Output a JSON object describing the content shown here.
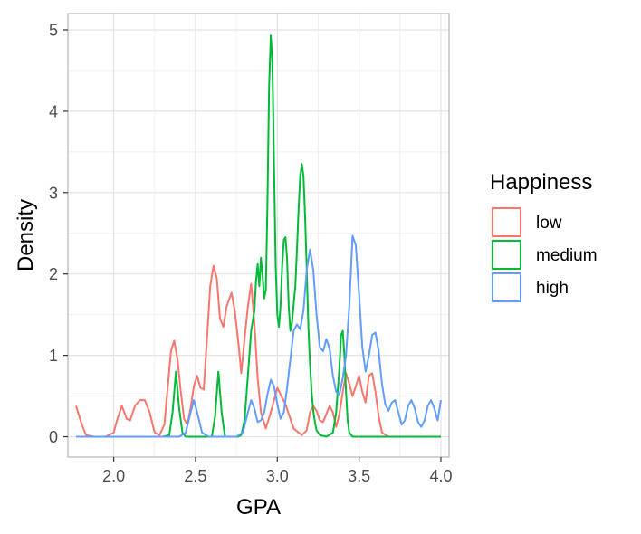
{
  "chart_data": {
    "type": "line",
    "subtype": "density",
    "title": "",
    "xlabel": "GPA",
    "ylabel": "Density",
    "xlim": [
      1.72,
      4.05
    ],
    "ylim": [
      -0.25,
      5.2
    ],
    "xticks": [
      2.0,
      2.5,
      3.0,
      3.5,
      4.0
    ],
    "xtick_labels": [
      "2.0",
      "2.5",
      "3.0",
      "3.5",
      "4.0"
    ],
    "yticks": [
      0,
      1,
      2,
      3,
      4,
      5
    ],
    "ytick_labels": [
      "0",
      "1",
      "2",
      "3",
      "4",
      "5"
    ],
    "grid": true,
    "legend": {
      "title": "Happiness",
      "position": "right"
    },
    "series": [
      {
        "name": "low",
        "color": "#F8766D",
        "x": [
          1.77,
          1.8,
          1.83,
          1.88,
          1.95,
          2.0,
          2.02,
          2.05,
          2.08,
          2.1,
          2.13,
          2.16,
          2.19,
          2.22,
          2.25,
          2.28,
          2.31,
          2.33,
          2.35,
          2.37,
          2.39,
          2.41,
          2.43,
          2.45,
          2.47,
          2.49,
          2.51,
          2.53,
          2.55,
          2.57,
          2.59,
          2.61,
          2.63,
          2.65,
          2.67,
          2.69,
          2.72,
          2.74,
          2.76,
          2.78,
          2.8,
          2.82,
          2.84,
          2.86,
          2.88,
          2.9,
          2.93,
          2.96,
          3.0,
          3.05,
          3.1,
          3.15,
          3.18,
          3.2,
          3.22,
          3.24,
          3.26,
          3.28,
          3.3,
          3.32,
          3.34,
          3.36,
          3.38,
          3.4,
          3.42,
          3.44,
          3.46,
          3.48,
          3.5,
          3.52,
          3.54,
          3.56,
          3.58,
          3.6,
          3.62,
          3.64,
          3.68,
          3.75,
          3.85,
          3.95,
          4.0
        ],
        "y": [
          0.38,
          0.18,
          0.02,
          0,
          0,
          0.05,
          0.2,
          0.38,
          0.22,
          0.2,
          0.38,
          0.45,
          0.45,
          0.3,
          0.05,
          0.02,
          0.15,
          0.6,
          1.05,
          1.18,
          0.95,
          0.55,
          0.22,
          0.15,
          0.35,
          0.62,
          0.75,
          0.6,
          0.58,
          1.2,
          1.85,
          2.1,
          1.95,
          1.45,
          1.35,
          1.6,
          1.77,
          1.55,
          1.2,
          0.78,
          1.2,
          1.6,
          1.88,
          1.4,
          0.72,
          0.3,
          0.1,
          0.3,
          0.6,
          0.4,
          0.1,
          0.02,
          0.08,
          0.3,
          0.38,
          0.32,
          0.2,
          0.18,
          0.28,
          0.38,
          0.3,
          0.12,
          0.28,
          0.55,
          0.78,
          0.65,
          0.5,
          0.62,
          0.75,
          0.55,
          0.42,
          0.75,
          0.78,
          0.55,
          0.25,
          0.05,
          0,
          0,
          0,
          0,
          0
        ]
      },
      {
        "name": "medium",
        "color": "#00BA38",
        "x": [
          1.77,
          2.3,
          2.34,
          2.36,
          2.38,
          2.4,
          2.42,
          2.44,
          2.56,
          2.6,
          2.62,
          2.64,
          2.66,
          2.68,
          2.72,
          2.76,
          2.78,
          2.8,
          2.82,
          2.84,
          2.86,
          2.87,
          2.88,
          2.89,
          2.9,
          2.91,
          2.92,
          2.93,
          2.94,
          2.95,
          2.96,
          2.97,
          2.98,
          2.99,
          3.0,
          3.01,
          3.02,
          3.03,
          3.04,
          3.05,
          3.06,
          3.07,
          3.08,
          3.09,
          3.1,
          3.11,
          3.12,
          3.13,
          3.14,
          3.15,
          3.16,
          3.17,
          3.18,
          3.19,
          3.2,
          3.21,
          3.22,
          3.23,
          3.24,
          3.26,
          3.3,
          3.34,
          3.36,
          3.38,
          3.39,
          3.4,
          3.41,
          3.42,
          3.43,
          3.44,
          3.46,
          3.5,
          4.0
        ],
        "y": [
          0,
          0,
          0.02,
          0.3,
          0.8,
          0.35,
          0.05,
          0,
          0,
          0,
          0.25,
          0.8,
          0.3,
          0,
          0,
          0,
          0.02,
          0.2,
          0.75,
          1.3,
          1.55,
          1.92,
          2.12,
          1.85,
          2.2,
          1.98,
          1.7,
          1.8,
          2.85,
          4.3,
          4.93,
          4.6,
          3.3,
          2.1,
          1.5,
          1.35,
          1.62,
          2.1,
          2.42,
          2.45,
          2.18,
          1.6,
          1.3,
          1.4,
          1.62,
          1.85,
          2.3,
          2.8,
          3.2,
          3.35,
          3.2,
          2.7,
          2.05,
          1.35,
          0.9,
          0.55,
          0.32,
          0.18,
          0.08,
          0.02,
          0,
          0.05,
          0.3,
          0.85,
          1.25,
          1.3,
          1.0,
          0.55,
          0.2,
          0.05,
          0,
          0,
          0
        ]
      },
      {
        "name": "high",
        "color": "#619CFF",
        "x": [
          1.77,
          2.4,
          2.44,
          2.47,
          2.49,
          2.51,
          2.54,
          2.58,
          2.75,
          2.79,
          2.82,
          2.84,
          2.86,
          2.88,
          2.9,
          2.92,
          2.94,
          2.96,
          2.98,
          3.0,
          3.02,
          3.04,
          3.06,
          3.08,
          3.1,
          3.12,
          3.14,
          3.16,
          3.18,
          3.2,
          3.22,
          3.24,
          3.26,
          3.28,
          3.3,
          3.32,
          3.34,
          3.36,
          3.38,
          3.4,
          3.42,
          3.44,
          3.46,
          3.48,
          3.5,
          3.52,
          3.54,
          3.56,
          3.58,
          3.6,
          3.62,
          3.64,
          3.66,
          3.68,
          3.7,
          3.72,
          3.74,
          3.76,
          3.78,
          3.8,
          3.82,
          3.84,
          3.86,
          3.88,
          3.9,
          3.92,
          3.94,
          3.96,
          3.98,
          4.0
        ],
        "y": [
          0,
          0,
          0.05,
          0.3,
          0.45,
          0.3,
          0.05,
          0,
          0,
          0.05,
          0.3,
          0.45,
          0.35,
          0.18,
          0.2,
          0.3,
          0.52,
          0.7,
          0.62,
          0.4,
          0.22,
          0.3,
          0.6,
          0.95,
          1.3,
          1.38,
          1.32,
          1.55,
          2.05,
          2.3,
          2.05,
          1.5,
          1.1,
          1.05,
          1.2,
          1.08,
          0.75,
          0.55,
          0.52,
          0.72,
          1.0,
          1.6,
          2.47,
          2.35,
          1.75,
          1.1,
          0.8,
          1.0,
          1.25,
          1.28,
          1.05,
          0.65,
          0.4,
          0.32,
          0.42,
          0.45,
          0.3,
          0.15,
          0.2,
          0.38,
          0.45,
          0.35,
          0.18,
          0.12,
          0.2,
          0.38,
          0.45,
          0.35,
          0.2,
          0.45
        ]
      }
    ]
  }
}
